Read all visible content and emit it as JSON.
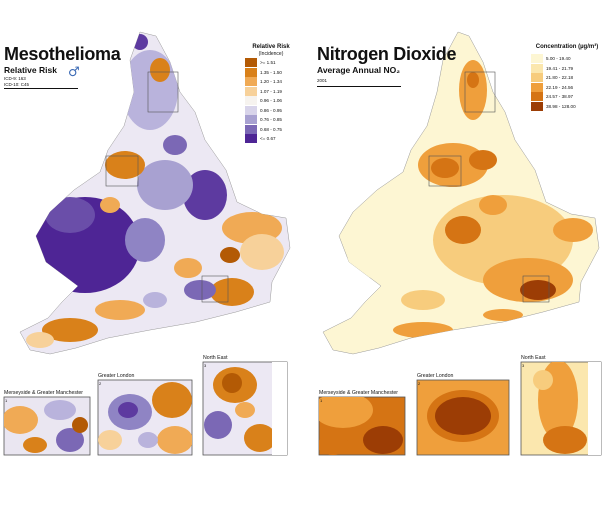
{
  "panels": [
    {
      "title": "Mesothelioma",
      "subtitle": "Relative Risk",
      "codes": [
        "ICD-9:  163",
        "ICD-10: C45"
      ],
      "male_symbol": "♂",
      "legend_title": "Relative Risk",
      "legend_subtitle": "(Incidence)",
      "legend": [
        {
          "label": ">= 1.51",
          "color": "#b35a05"
        },
        {
          "label": "1.35 - 1.50",
          "color": "#d9811a"
        },
        {
          "label": "1.20 - 1.34",
          "color": "#f0aa55"
        },
        {
          "label": "1.07 - 1.19",
          "color": "#f7d19a"
        },
        {
          "label": "0.96 - 1.06",
          "color": "#f6f3ef"
        },
        {
          "label": "0.86 - 0.95",
          "color": "#d8d4ea"
        },
        {
          "label": "0.76 - 0.85",
          "color": "#a8a1d1"
        },
        {
          "label": "0.68 - 0.75",
          "color": "#7b68b5"
        },
        {
          "label": "<= 0.67",
          "color": "#4e2595"
        }
      ],
      "insets": [
        {
          "label": "Merseyside & Greater Manchester",
          "num": "1"
        },
        {
          "label": "Greater London",
          "num": "2"
        },
        {
          "label": "North East",
          "num": "3"
        }
      ]
    },
    {
      "title": "Nitrogen Dioxide",
      "subtitle": "Average Annual NO₂",
      "codes": [
        "2001"
      ],
      "legend_title": "Concentration (µg/m³)",
      "legend": [
        {
          "label": "5.00 - 19.40",
          "color": "#fdf6d3"
        },
        {
          "label": "19.41 - 21.79",
          "color": "#fbe7ae"
        },
        {
          "label": "21.80 - 22.18",
          "color": "#f7cc7d"
        },
        {
          "label": "22.19 - 24.56",
          "color": "#ef9f3c"
        },
        {
          "label": "24.57 - 38.97",
          "color": "#d57414"
        },
        {
          "label": "38.98 - 128.00",
          "color": "#9c3d05"
        }
      ],
      "insets": [
        {
          "label": "Merseyside & Greater Manchester",
          "num": "1"
        },
        {
          "label": "Greater London",
          "num": "2"
        },
        {
          "label": "North East",
          "num": "3"
        }
      ]
    }
  ]
}
